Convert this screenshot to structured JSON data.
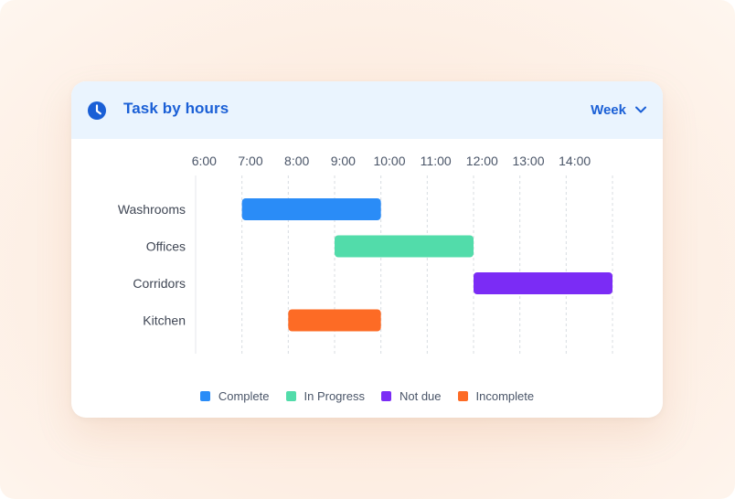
{
  "header": {
    "title": "Task by hours",
    "icon": "clock-icon",
    "range_label": "Week",
    "range_icon": "chevron-down-icon",
    "accent": "#1a5fd6"
  },
  "chart_data": {
    "type": "gantt",
    "title": "Task by hours",
    "x_ticks": [
      "6:00",
      "7:00",
      "8:00",
      "9:00",
      "10:00",
      "11:00",
      "12:00",
      "13:00",
      "14:00"
    ],
    "x_range": [
      "6:00",
      "15:00"
    ],
    "categories": [
      "Washrooms",
      "Offices",
      "Corridors",
      "Kitchen"
    ],
    "tasks": [
      {
        "category": "Washrooms",
        "start": "7:00",
        "end": "10:00",
        "status": "Complete"
      },
      {
        "category": "Offices",
        "start": "9:00",
        "end": "12:00",
        "status": "In Progress"
      },
      {
        "category": "Corridors",
        "start": "12:00",
        "end": "15:00",
        "status": "Not due"
      },
      {
        "category": "Kitchen",
        "start": "8:00",
        "end": "10:00",
        "status": "Incomplete"
      }
    ],
    "legend": [
      {
        "name": "Complete",
        "color": "#2a8cf7"
      },
      {
        "name": "In Progress",
        "color": "#52dcaa"
      },
      {
        "name": "Not due",
        "color": "#7b2cf5"
      },
      {
        "name": "Incomplete",
        "color": "#fd6b25"
      }
    ],
    "grid": true,
    "legend_position": "bottom"
  }
}
